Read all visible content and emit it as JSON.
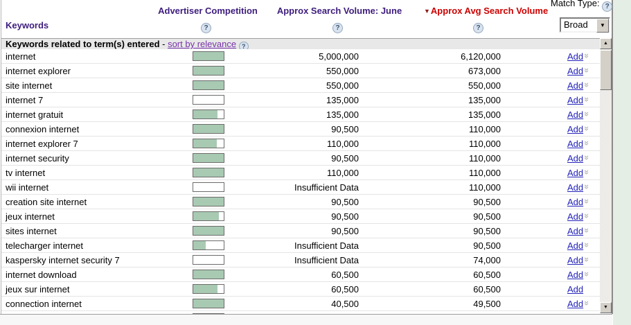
{
  "match_type": {
    "label": "Match Type:",
    "selected": "Broad"
  },
  "header": {
    "keywords": "Keywords",
    "advertiser_competition": "Advertiser Competition",
    "search_volume_june": "Approx Search Volume: June",
    "avg_search_volume": "Approx Avg Search Volume",
    "sort_arrow": "▼"
  },
  "subheader": {
    "title": "Keywords related to term(s) entered",
    "separator": " - ",
    "sort_link": "sort by relevance"
  },
  "icons": {
    "help": "?",
    "double_chevron": "»",
    "scroll_up": "▲",
    "scroll_down": "▼",
    "dropdown_arrow": "▼"
  },
  "table": {
    "add_label": "Add",
    "partial_row_visible": true,
    "partial_row_competition": 1.0
  },
  "colors": {
    "header_purple": "#3d1c7d",
    "header_red": "#cc0000",
    "bar_green": "#a8cab2",
    "link_purple": "#7733aa",
    "add_link_blue": "#2222bb",
    "page_strip_green": "#e4eee4"
  },
  "rows": [
    {
      "keyword": "internet",
      "competition": 1.0,
      "june": "5,000,000",
      "avg": "6,120,000",
      "chevron": true
    },
    {
      "keyword": "internet explorer",
      "competition": 1.0,
      "june": "550,000",
      "avg": "673,000",
      "chevron": true
    },
    {
      "keyword": "site internet",
      "competition": 1.0,
      "june": "550,000",
      "avg": "550,000",
      "chevron": true
    },
    {
      "keyword": "internet 7",
      "competition": 0.0,
      "june": "135,000",
      "avg": "135,000",
      "chevron": true
    },
    {
      "keyword": "internet gratuit",
      "competition": 0.8,
      "june": "135,000",
      "avg": "135,000",
      "chevron": true
    },
    {
      "keyword": "connexion internet",
      "competition": 1.0,
      "june": "90,500",
      "avg": "110,000",
      "chevron": true
    },
    {
      "keyword": "internet explorer 7",
      "competition": 0.78,
      "june": "110,000",
      "avg": "110,000",
      "chevron": true
    },
    {
      "keyword": "internet security",
      "competition": 1.0,
      "june": "90,500",
      "avg": "110,000",
      "chevron": true
    },
    {
      "keyword": "tv internet",
      "competition": 1.0,
      "june": "110,000",
      "avg": "110,000",
      "chevron": true
    },
    {
      "keyword": "wii internet",
      "competition": 0.0,
      "june": "Insufficient Data",
      "avg": "110,000",
      "chevron": true
    },
    {
      "keyword": "creation site internet",
      "competition": 1.0,
      "june": "90,500",
      "avg": "90,500",
      "chevron": true
    },
    {
      "keyword": "jeux internet",
      "competition": 0.84,
      "june": "90,500",
      "avg": "90,500",
      "chevron": true
    },
    {
      "keyword": "sites internet",
      "competition": 1.0,
      "june": "90,500",
      "avg": "90,500",
      "chevron": true
    },
    {
      "keyword": "telecharger internet",
      "competition": 0.4,
      "june": "Insufficient Data",
      "avg": "90,500",
      "chevron": true
    },
    {
      "keyword": "kaspersky internet security 7",
      "competition": 0.0,
      "june": "Insufficient Data",
      "avg": "74,000",
      "chevron": true
    },
    {
      "keyword": "internet download",
      "competition": 1.0,
      "june": "60,500",
      "avg": "60,500",
      "chevron": true
    },
    {
      "keyword": "jeux sur internet",
      "competition": 0.8,
      "june": "60,500",
      "avg": "60,500",
      "chevron": false
    },
    {
      "keyword": "connection internet",
      "competition": 1.0,
      "june": "40,500",
      "avg": "49,500",
      "chevron": true
    }
  ]
}
